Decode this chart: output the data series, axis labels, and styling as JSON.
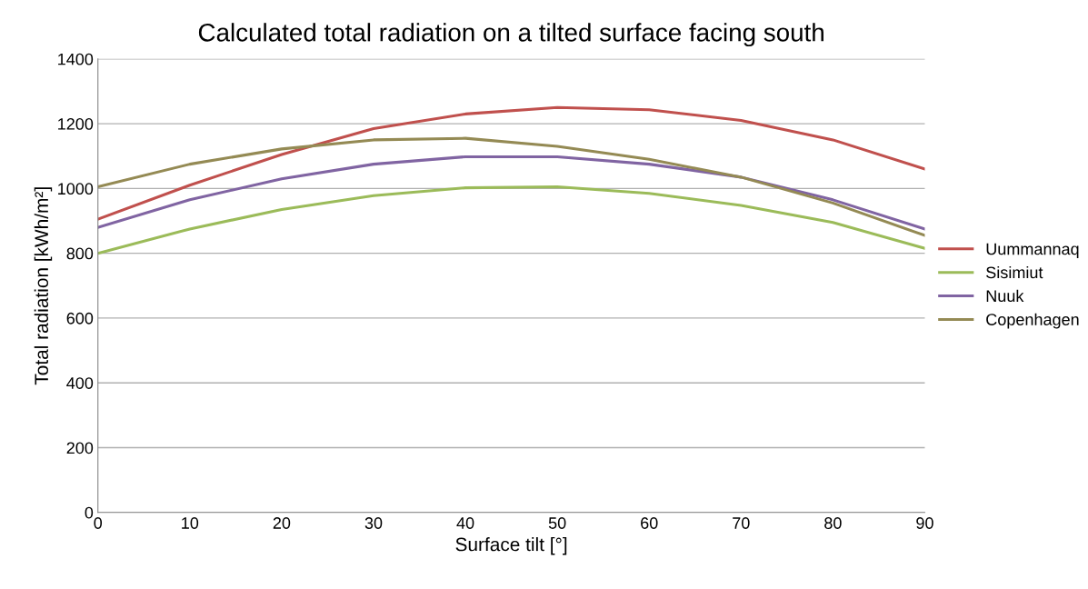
{
  "chart_data": {
    "type": "line",
    "title": "Calculated total radiation on a tilted surface facing south",
    "xlabel": "Surface tilt [°]",
    "ylabel": "Total radiation [kWh/m²]",
    "x": [
      0,
      10,
      20,
      30,
      40,
      50,
      60,
      70,
      80,
      90
    ],
    "series": [
      {
        "name": "Uummannaq",
        "color": "#c0504d",
        "values": [
          905,
          1010,
          1105,
          1185,
          1230,
          1250,
          1243,
          1210,
          1150,
          1060
        ]
      },
      {
        "name": "Sisimiut",
        "color": "#9bbb59",
        "values": [
          800,
          875,
          935,
          978,
          1002,
          1005,
          985,
          948,
          895,
          815
        ]
      },
      {
        "name": "Nuuk",
        "color": "#8064a2",
        "values": [
          880,
          965,
          1030,
          1075,
          1098,
          1098,
          1075,
          1035,
          965,
          875
        ]
      },
      {
        "name": "Copenhagen",
        "color": "#948a54",
        "values": [
          1005,
          1075,
          1122,
          1150,
          1155,
          1130,
          1090,
          1035,
          955,
          855
        ]
      }
    ],
    "xlim": [
      0,
      90
    ],
    "xticks": [
      0,
      10,
      20,
      30,
      40,
      50,
      60,
      70,
      80,
      90
    ],
    "ylim": [
      0,
      1400
    ],
    "yticks": [
      0,
      200,
      400,
      600,
      800,
      1000,
      1200,
      1400
    ],
    "grid": "y",
    "legend": "right",
    "marker": "none",
    "line_style": "solid"
  }
}
